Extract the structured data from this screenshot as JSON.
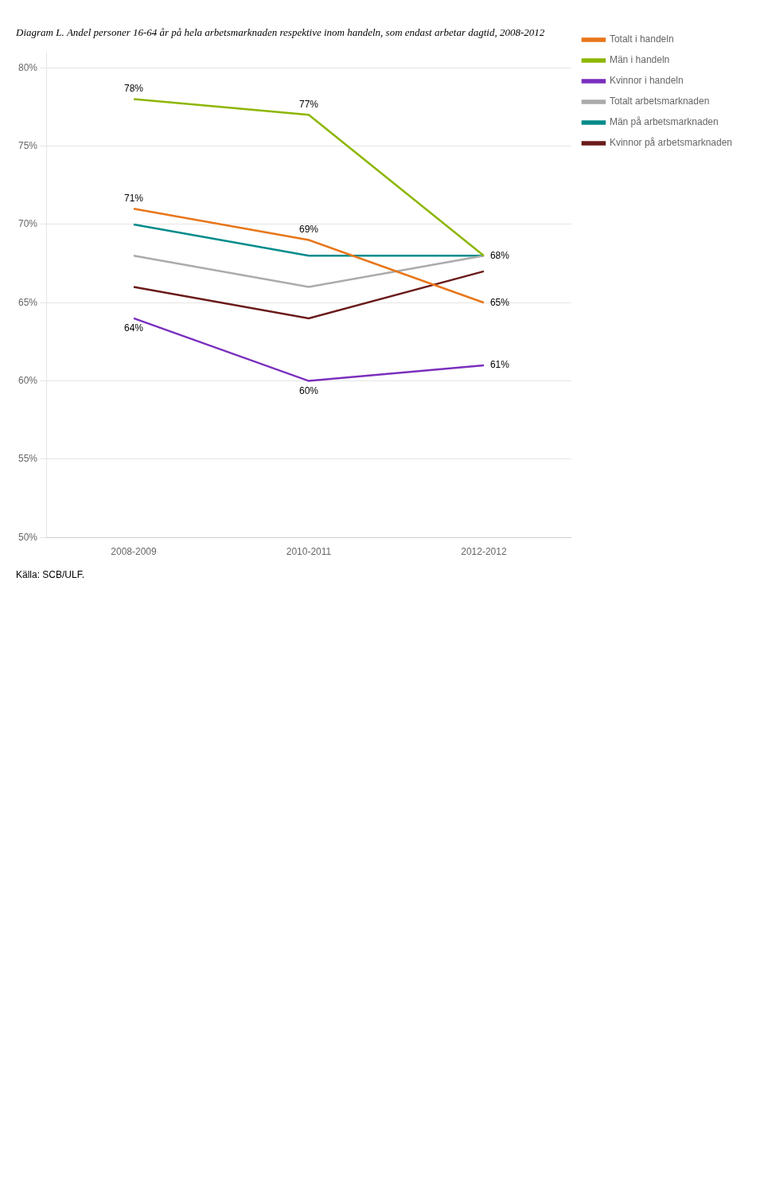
{
  "chart_data": {
    "type": "line",
    "title": "Diagram L. Andel personer 16-64 år på hela arbetsmarknaden respektive inom handeln, som endast arbetar dagtid, 2008-2012",
    "source": "Källa: SCB/ULF.",
    "categories": [
      "2008-2009",
      "2010-2011",
      "2012-2012"
    ],
    "series": [
      {
        "name": "Totalt i handeln",
        "color": "#E8761A",
        "values": [
          71,
          69,
          65
        ]
      },
      {
        "name": "Män i handeln",
        "color": "#8DB600",
        "values": [
          78,
          77,
          68
        ]
      },
      {
        "name": "Kvinnor i handeln",
        "color": "#7B2FBE",
        "values": [
          64,
          60,
          61
        ]
      },
      {
        "name": "Totalt arbetsmarknaden",
        "color": "#ABABAB",
        "values": [
          68,
          66,
          68
        ]
      },
      {
        "name": "Män på arbetsmarknaden",
        "color": "#008B8B",
        "values": [
          70,
          68,
          68
        ]
      },
      {
        "name": "Kvinnor på arbetsmarknaden",
        "color": "#6B1A1A",
        "values": [
          66,
          64,
          67
        ]
      }
    ],
    "annotations": [
      {
        "series": "Totalt i handeln",
        "x": "2008-2009",
        "value": 71,
        "text": "71%"
      },
      {
        "series": "Totalt i handeln",
        "x": "2010-2011",
        "value": 69,
        "text": "69%"
      },
      {
        "series": "Totalt i handeln",
        "x": "2012-2012",
        "value": 65,
        "text": "65%"
      },
      {
        "series": "Män i handeln",
        "x": "2008-2009",
        "value": 78,
        "text": "78%"
      },
      {
        "series": "Män i handeln",
        "x": "2010-2011",
        "value": 77,
        "text": "77%"
      },
      {
        "series": "Män i handeln",
        "x": "2012-2012",
        "value": 68,
        "text": "68%"
      },
      {
        "series": "Kvinnor i handeln",
        "x": "2008-2009",
        "value": 64,
        "text": "64%"
      },
      {
        "series": "Kvinnor i handeln",
        "x": "2010-2011",
        "value": 60,
        "text": "60%"
      },
      {
        "series": "Kvinnor i handeln",
        "x": "2012-2012",
        "value": 61,
        "text": "61%"
      }
    ],
    "ylim": [
      50,
      81
    ],
    "yticks": [
      {
        "value": 50,
        "label": "50%"
      },
      {
        "value": 55,
        "label": "55%"
      },
      {
        "value": 60,
        "label": "60%"
      },
      {
        "value": 65,
        "label": "65%"
      },
      {
        "value": 70,
        "label": "70%"
      },
      {
        "value": 75,
        "label": "75%"
      },
      {
        "value": 80,
        "label": "80%"
      }
    ],
    "grid": true,
    "legend": "right"
  }
}
